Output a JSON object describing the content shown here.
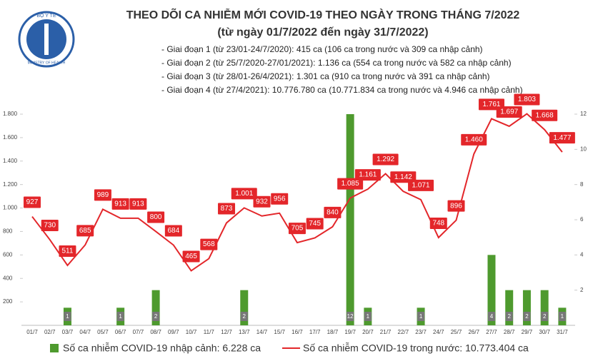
{
  "logo": {
    "top": "BỘ Y TẾ",
    "bottom": "MINISTRY OF HEALTH"
  },
  "chart_data": {
    "type": "bar-line",
    "title": "THEO DÕI CA NHIỄM MỚI COVID-19 THEO NGÀY TRONG THÁNG 7/2022",
    "subtitle": "(từ ngày 01/7/2022 đến ngày 31/7/2022)",
    "annotations": [
      "- Giai đoạn 1 (từ 23/01-24/7/2020): 415 ca (106 ca trong nước và 309 ca nhập cảnh)",
      "- Giai đoạn 2 (từ 25/7/2020-27/01/2021): 1.136 ca (554 ca trong nước và 582 ca nhập cảnh)",
      "- Giai đoạn 3 (từ 28/01-26/4/2021): 1.301 ca (910 ca trong nước và 391 ca nhập cảnh)",
      "- Giai đoạn 4 (từ 27/4/2021): 10.776.780 ca (10.771.834 ca trong nước và 4.946 ca nhập cảnh)"
    ],
    "categories": [
      "01/7",
      "02/7",
      "03/7",
      "04/7",
      "05/7",
      "06/7",
      "07/7",
      "08/7",
      "09/7",
      "10/7",
      "11/7",
      "12/7",
      "13/7",
      "14/7",
      "15/7",
      "16/7",
      "17/7",
      "18/7",
      "19/7",
      "20/7",
      "21/7",
      "22/7",
      "23/7",
      "24/7",
      "25/7",
      "26/7",
      "27/7",
      "28/7",
      "29/7",
      "30/7",
      "31/7"
    ],
    "series": [
      {
        "name": "Số ca nhiễm COVID-19 nhập cảnh: 6.228 ca",
        "color": "#4e9a2e",
        "axis": "y2",
        "kind": "bar",
        "values": [
          0,
          0,
          1,
          0,
          0,
          1,
          0,
          2,
          0,
          0,
          0,
          0,
          2,
          0,
          0,
          0,
          0,
          0,
          12,
          1,
          0,
          0,
          1,
          0,
          0,
          0,
          4,
          2,
          2,
          2,
          1
        ]
      },
      {
        "name": "Số ca nhiễm COVID-19 trong nước: 10.773.404 ca",
        "color": "#e3262a",
        "kind": "line",
        "values": [
          927,
          730,
          511,
          685,
          989,
          913,
          913,
          800,
          684,
          465,
          568,
          873,
          1001,
          932,
          956,
          705,
          745,
          840,
          1085,
          1161,
          1292,
          1142,
          1071,
          748,
          896,
          1460,
          1761,
          1697,
          1803,
          1668,
          1477
        ],
        "value_labels": [
          "927",
          "730",
          "511",
          "685",
          "989",
          "913",
          "913",
          "800",
          "684",
          "465",
          "568",
          "873",
          "1.001",
          "932",
          "956",
          "705",
          "745",
          "840",
          "1.085",
          "1.161",
          "1.292",
          "1.142",
          "1.071",
          "748",
          "896",
          "1.460",
          "1.761",
          "1.697",
          "1.803",
          "1.668",
          "1.477"
        ]
      }
    ],
    "ylim": [
      0,
      1800
    ],
    "yticks": [
      200,
      400,
      600,
      800,
      {
        "value": 1000,
        "label": "1.000"
      },
      {
        "value": 1200,
        "label": "1.200"
      },
      {
        "value": 1400,
        "label": "1.400"
      },
      {
        "value": 1600,
        "label": "1.600"
      },
      {
        "value": 1800,
        "label": "1.800"
      }
    ],
    "y2lim": [
      0,
      12
    ],
    "y2ticks": [
      2,
      4,
      6,
      8,
      10,
      12
    ]
  }
}
